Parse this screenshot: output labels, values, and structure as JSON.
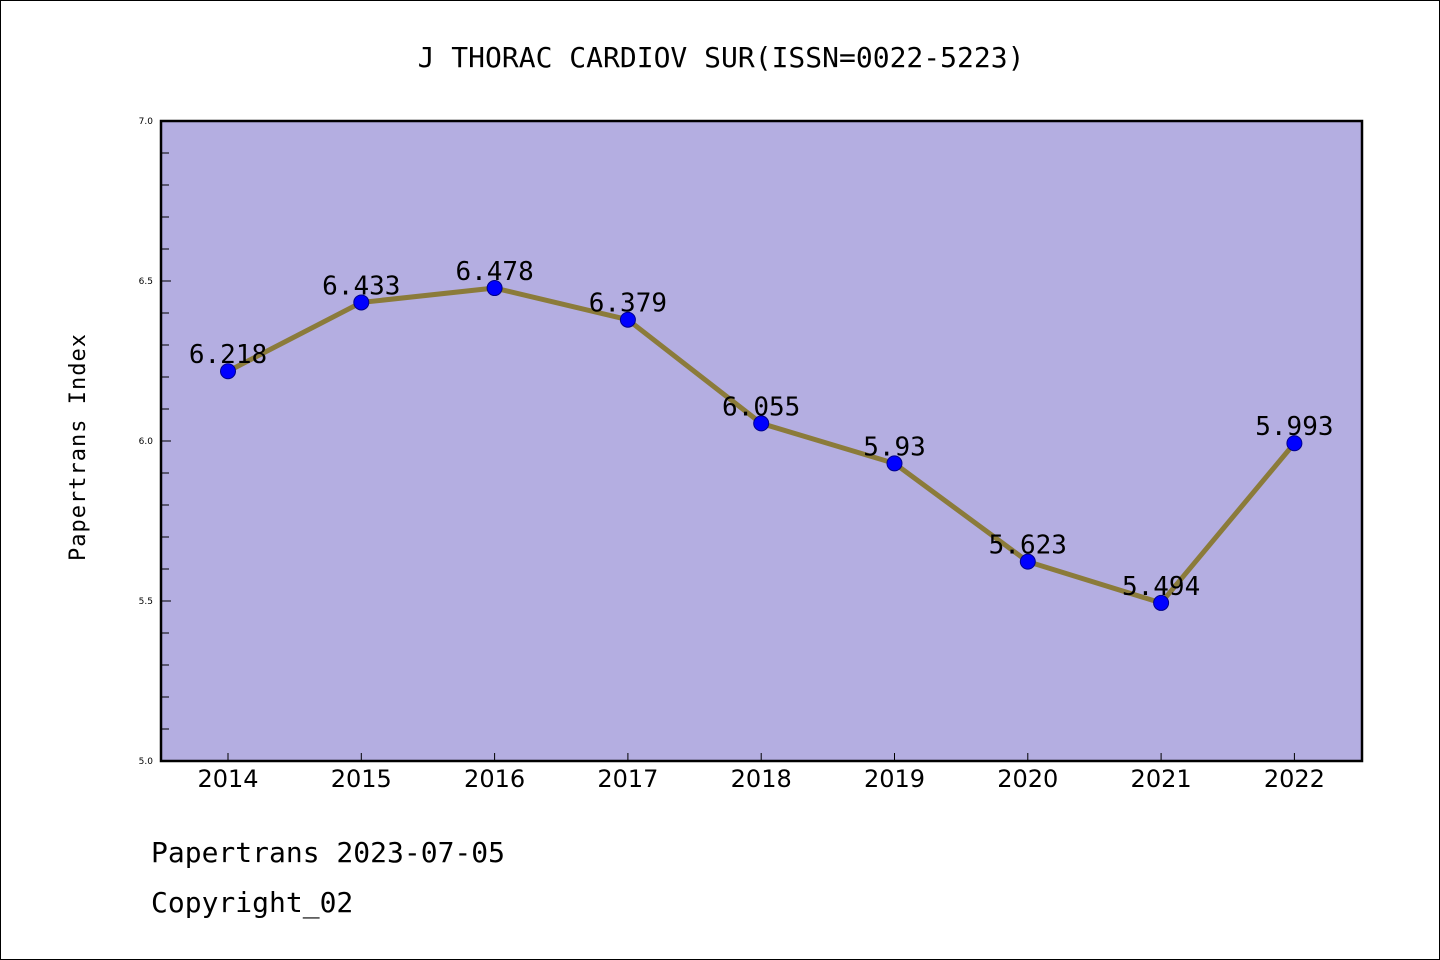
{
  "footer": {
    "line1": "Papertrans 2023-07-05",
    "line2": "Copyright_02"
  },
  "colors": {
    "plot_background": "#b4aee1",
    "line": "#8b7b3a",
    "marker": "#0000ff",
    "frame": "#000000"
  },
  "chart_data": {
    "type": "line",
    "title": "J THORAC CARDIOV SUR(ISSN=0022-5223)",
    "xlabel": "",
    "ylabel": "Papertrans Index",
    "categories": [
      "2014",
      "2015",
      "2016",
      "2017",
      "2018",
      "2019",
      "2020",
      "2021",
      "2022"
    ],
    "series": [
      {
        "values": [
          6.218,
          6.433,
          6.478,
          6.379,
          6.055,
          5.93,
          5.623,
          5.494,
          5.993
        ],
        "labels": [
          "6.218",
          "6.433",
          "6.478",
          "6.379",
          "6.055",
          "5.93",
          "5.623",
          "5.494",
          "5.993"
        ]
      }
    ],
    "ylim": [
      5.0,
      7.0
    ],
    "yticks": [
      "5.0",
      "5.5",
      "6.0",
      "6.5",
      "7.0"
    ],
    "grid": false,
    "legend": "none"
  }
}
